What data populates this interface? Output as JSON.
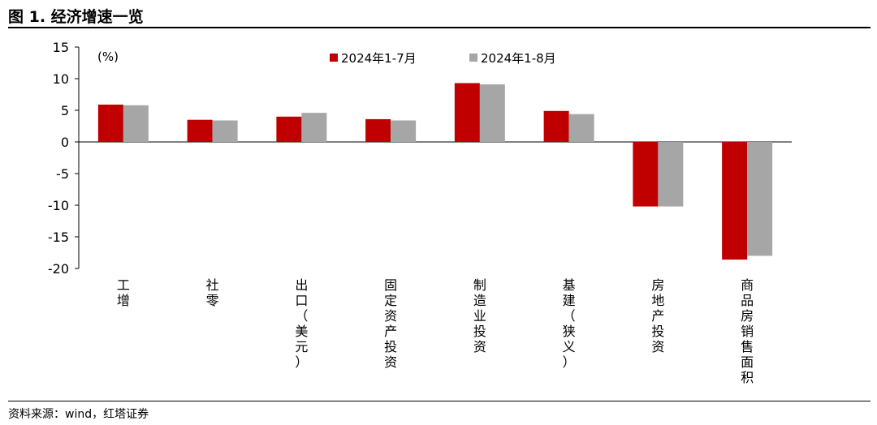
{
  "figure_title": "图 1. 经济增速一览",
  "source_note": "资料来源：wind，红塔证券",
  "chart_data": {
    "type": "bar",
    "unit_label": "(%)",
    "categories": [
      "工增",
      "社零",
      "出口（美元）",
      "固定资产投资",
      "制造业投资",
      "基建（狭义）",
      "房地产投资",
      "商品房销售面积"
    ],
    "series": [
      {
        "name": "2024年1-7月",
        "color": "#c00000",
        "values": [
          5.9,
          3.5,
          4.0,
          3.6,
          9.3,
          4.9,
          -10.2,
          -18.6
        ]
      },
      {
        "name": "2024年1-8月",
        "color": "#a6a6a6",
        "values": [
          5.8,
          3.4,
          4.6,
          3.4,
          9.1,
          4.4,
          -10.2,
          -18.0
        ]
      }
    ],
    "ylim": [
      -20,
      15
    ],
    "yticks": [
      15,
      10,
      5,
      0,
      -5,
      -10,
      -15,
      -20
    ],
    "ytick_labels": [
      "15",
      "10",
      "5",
      "0",
      "-5",
      "-10",
      "-15",
      "-20"
    ],
    "legend_position": "top-center",
    "grid": false
  }
}
